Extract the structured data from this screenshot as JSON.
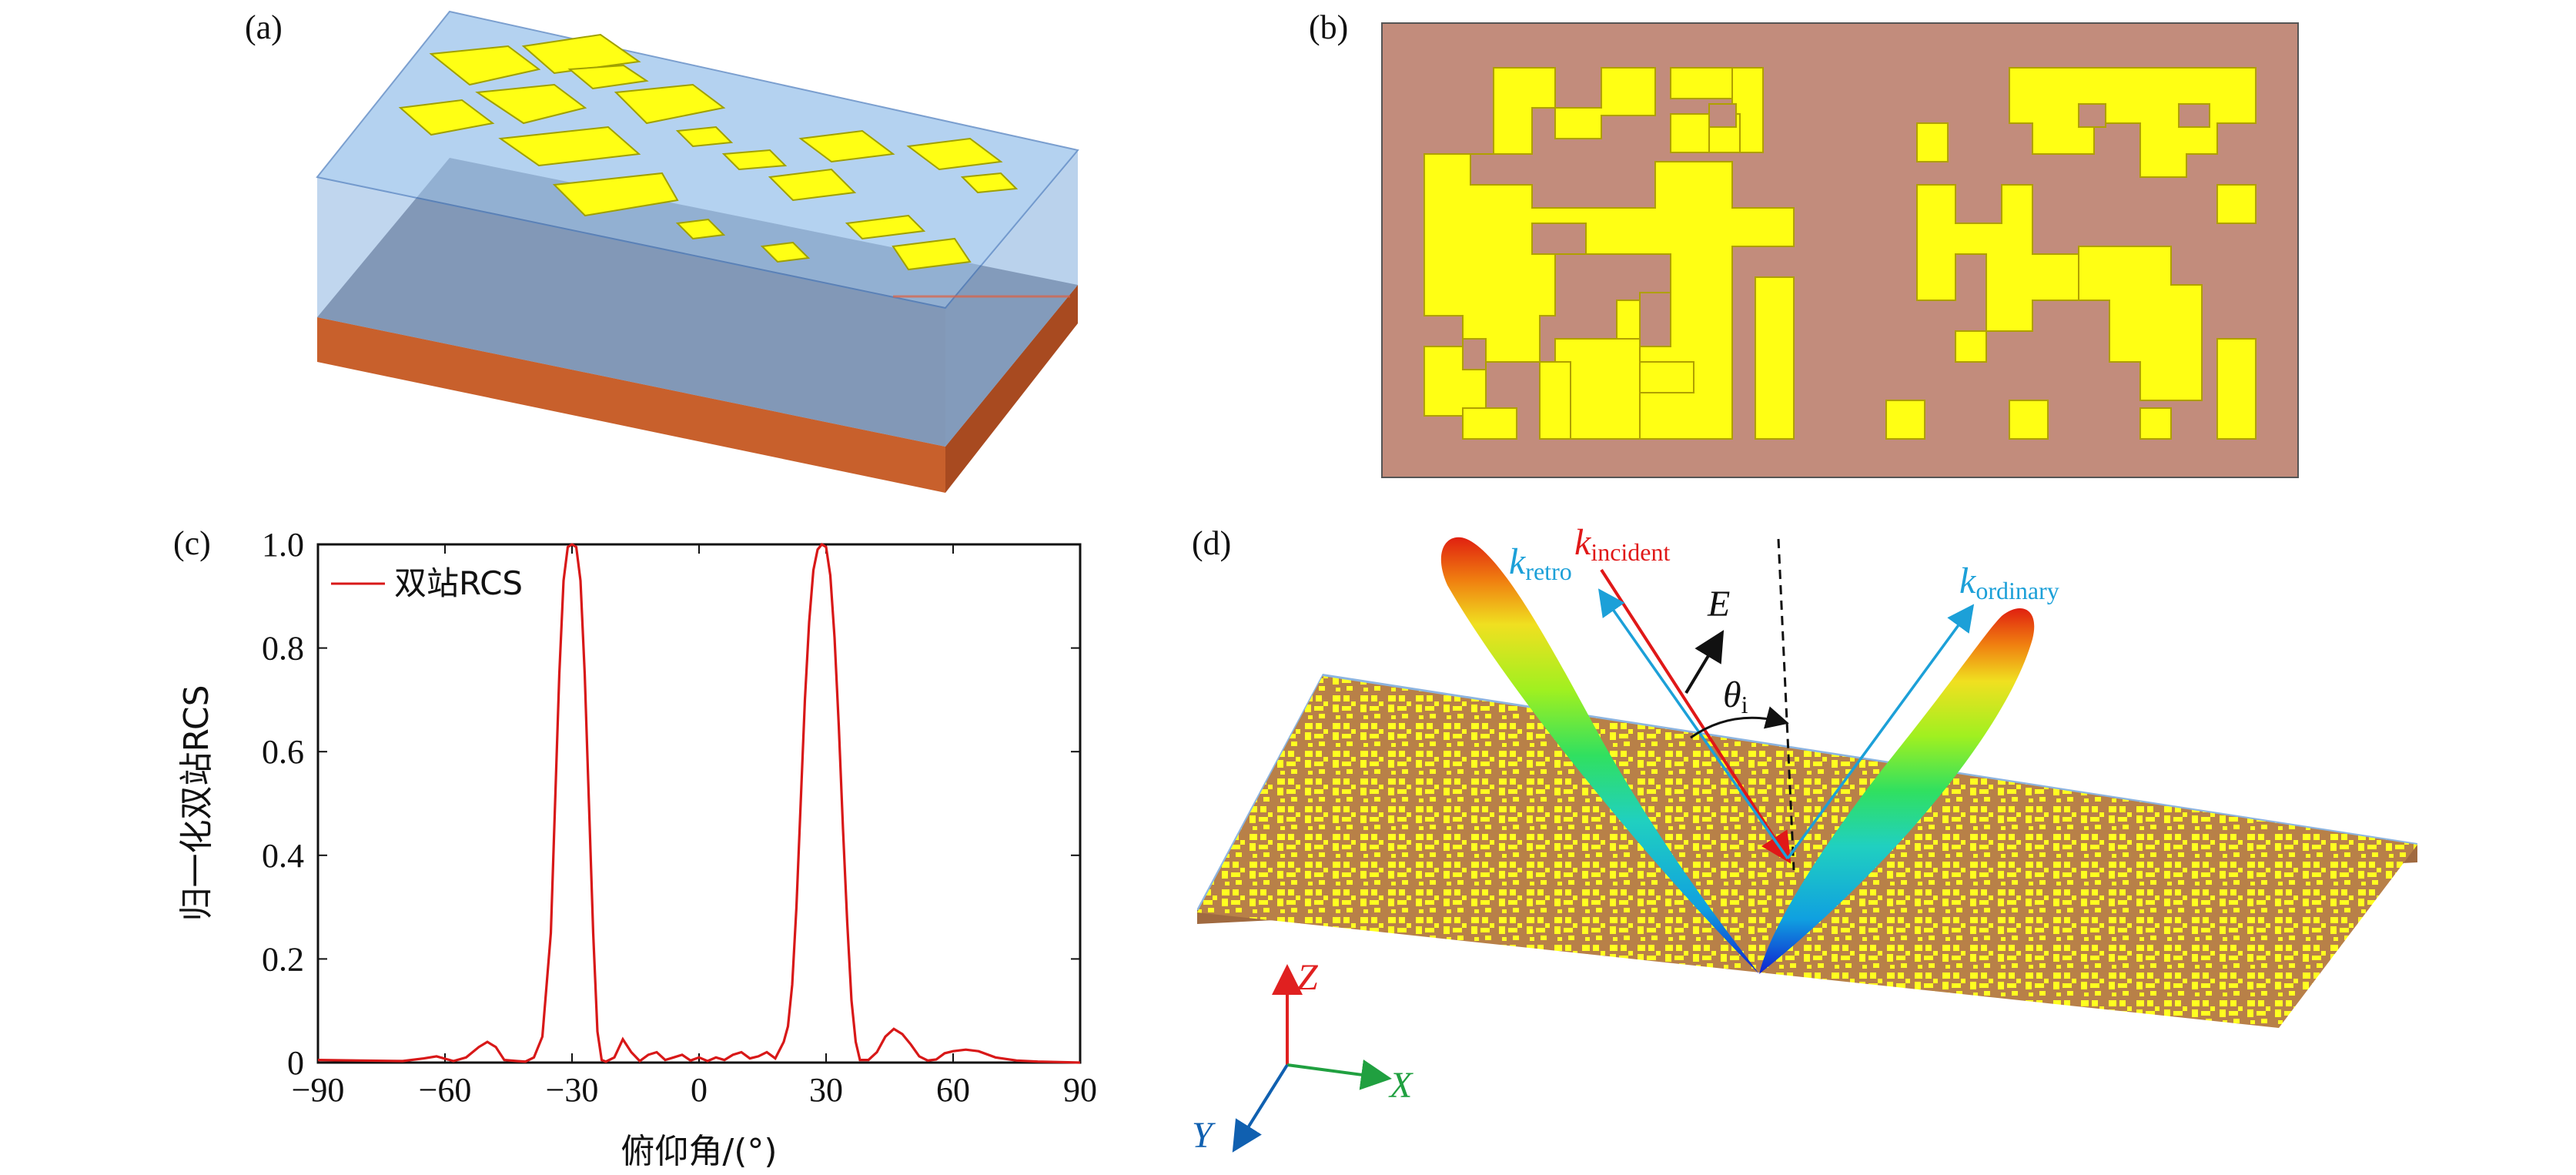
{
  "panels": {
    "a": {
      "label": "(a)"
    },
    "b": {
      "label": "(b)"
    },
    "c": {
      "label": "(c)"
    },
    "d": {
      "label": "(d)"
    }
  },
  "colors": {
    "gold": "#ffff14",
    "substrate_b": "#c28c7c",
    "dielectric": "#8cb4e0",
    "copper": "#c8602c",
    "curve": "#d81818",
    "blue_arrow": "#1ca0d8",
    "red_arrow": "#e01818",
    "axis_z": "#e02020",
    "axis_x": "#20a040",
    "axis_y": "#1060b0"
  },
  "chart_data": {
    "type": "line",
    "title": "",
    "xlabel": "俯仰角/(°)",
    "ylabel": "归一化双站RCS",
    "xlim": [
      -90,
      90
    ],
    "ylim": [
      0,
      1.0
    ],
    "xticks": [
      "−90",
      "−60",
      "−30",
      "0",
      "30",
      "60",
      "90"
    ],
    "yticks": [
      "0",
      "0.2",
      "0.4",
      "0.6",
      "0.8",
      "1.0"
    ],
    "legend": {
      "position": "top-left",
      "entries": [
        "双站RCS"
      ]
    },
    "series": [
      {
        "name": "双站RCS",
        "color": "#d81818",
        "x": [
          -90,
          -80,
          -70,
          -65,
          -62,
          -58,
          -55,
          -52,
          -50,
          -48,
          -46,
          -43,
          -41,
          -39,
          -37,
          -35,
          -34,
          -33,
          -32,
          -31,
          -30,
          -29,
          -28,
          -27,
          -26,
          -25,
          -24,
          -23,
          -22,
          -20,
          -18,
          -16,
          -14,
          -12,
          -10,
          -8,
          -6,
          -4,
          -2,
          0,
          2,
          4,
          6,
          8,
          10,
          12,
          14,
          16,
          18,
          20,
          21,
          22,
          23,
          24,
          25,
          26,
          27,
          28,
          29,
          30,
          31,
          32,
          33,
          34,
          35,
          36,
          37,
          38,
          40,
          42,
          44,
          46,
          48,
          50,
          52,
          54,
          56,
          58,
          60,
          63,
          66,
          70,
          75,
          80,
          85,
          90
        ],
        "y": [
          0.005,
          0.004,
          0.003,
          0.008,
          0.012,
          0.003,
          0.01,
          0.03,
          0.04,
          0.03,
          0.005,
          0.003,
          0.002,
          0.01,
          0.05,
          0.25,
          0.5,
          0.75,
          0.93,
          0.995,
          1.0,
          0.995,
          0.93,
          0.75,
          0.5,
          0.25,
          0.06,
          0.005,
          0.002,
          0.01,
          0.045,
          0.02,
          0.003,
          0.015,
          0.02,
          0.005,
          0.01,
          0.015,
          0.004,
          0.01,
          0.003,
          0.01,
          0.005,
          0.015,
          0.02,
          0.008,
          0.012,
          0.02,
          0.008,
          0.04,
          0.07,
          0.15,
          0.3,
          0.5,
          0.7,
          0.85,
          0.95,
          0.99,
          1.0,
          0.995,
          0.94,
          0.82,
          0.65,
          0.45,
          0.27,
          0.12,
          0.04,
          0.005,
          0.005,
          0.02,
          0.05,
          0.065,
          0.055,
          0.035,
          0.012,
          0.004,
          0.006,
          0.018,
          0.022,
          0.025,
          0.022,
          0.01,
          0.004,
          0.002,
          0.001,
          0.0
        ]
      }
    ]
  },
  "diagram_d": {
    "k_incident": {
      "base": "k",
      "sub": "incident"
    },
    "k_retro": {
      "base": "k",
      "sub": "retro"
    },
    "k_ordinary": {
      "base": "k",
      "sub": "ordinary"
    },
    "e_field": "E",
    "theta": {
      "base": "θ",
      "sub": "i"
    },
    "axes": {
      "z": "Z",
      "x": "X",
      "y": "Y"
    }
  }
}
